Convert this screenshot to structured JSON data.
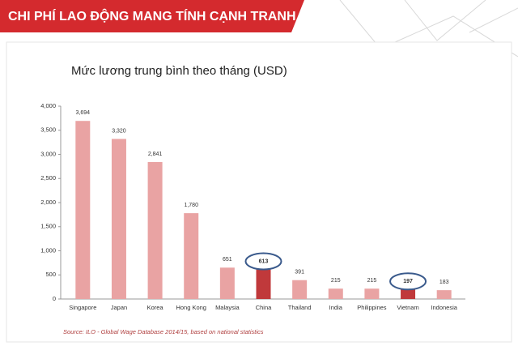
{
  "header": {
    "title": "CHI PHÍ LAO ĐỘNG MANG TÍNH CẠNH TRANH CAO"
  },
  "chart_data": {
    "type": "bar",
    "title": "Mức lương trung bình theo tháng (USD)",
    "categories": [
      "Singapore",
      "Japan",
      "Korea",
      "Hong Kong",
      "Malaysia",
      "China",
      "Thailand",
      "India",
      "Philippines",
      "Vietnam",
      "Indonesia"
    ],
    "values": [
      3694,
      3320,
      2841,
      1780,
      651,
      613,
      391,
      215,
      215,
      197,
      183
    ],
    "value_labels": [
      "3,694",
      "3,320",
      "2,841",
      "1,780",
      "651",
      "613",
      "391",
      "215",
      "215",
      "197",
      "183"
    ],
    "color": "#e9a3a3",
    "colors": [
      "#e9a3a3",
      "#e9a3a3",
      "#e9a3a3",
      "#e9a3a3",
      "#e9a3a3",
      "#c0393b",
      "#e9a3a3",
      "#e9a3a3",
      "#e9a3a3",
      "#c0393b",
      "#e9a3a3"
    ],
    "ylim": [
      0,
      4000
    ],
    "yticks": [
      0,
      500,
      {
        "value": 1000,
        "label": "1,000"
      },
      {
        "value": 1500,
        "label": "1,500"
      },
      {
        "value": 2000,
        "label": "2,000"
      },
      {
        "value": 2500,
        "label": "2,500"
      },
      {
        "value": 3000,
        "label": "3,000"
      },
      {
        "value": 3500,
        "label": "3,500"
      },
      {
        "value": 4000,
        "label": "4,000"
      }
    ],
    "source": "Source: ILO - Global Wage Database 2014/15, based on national statistics"
  }
}
